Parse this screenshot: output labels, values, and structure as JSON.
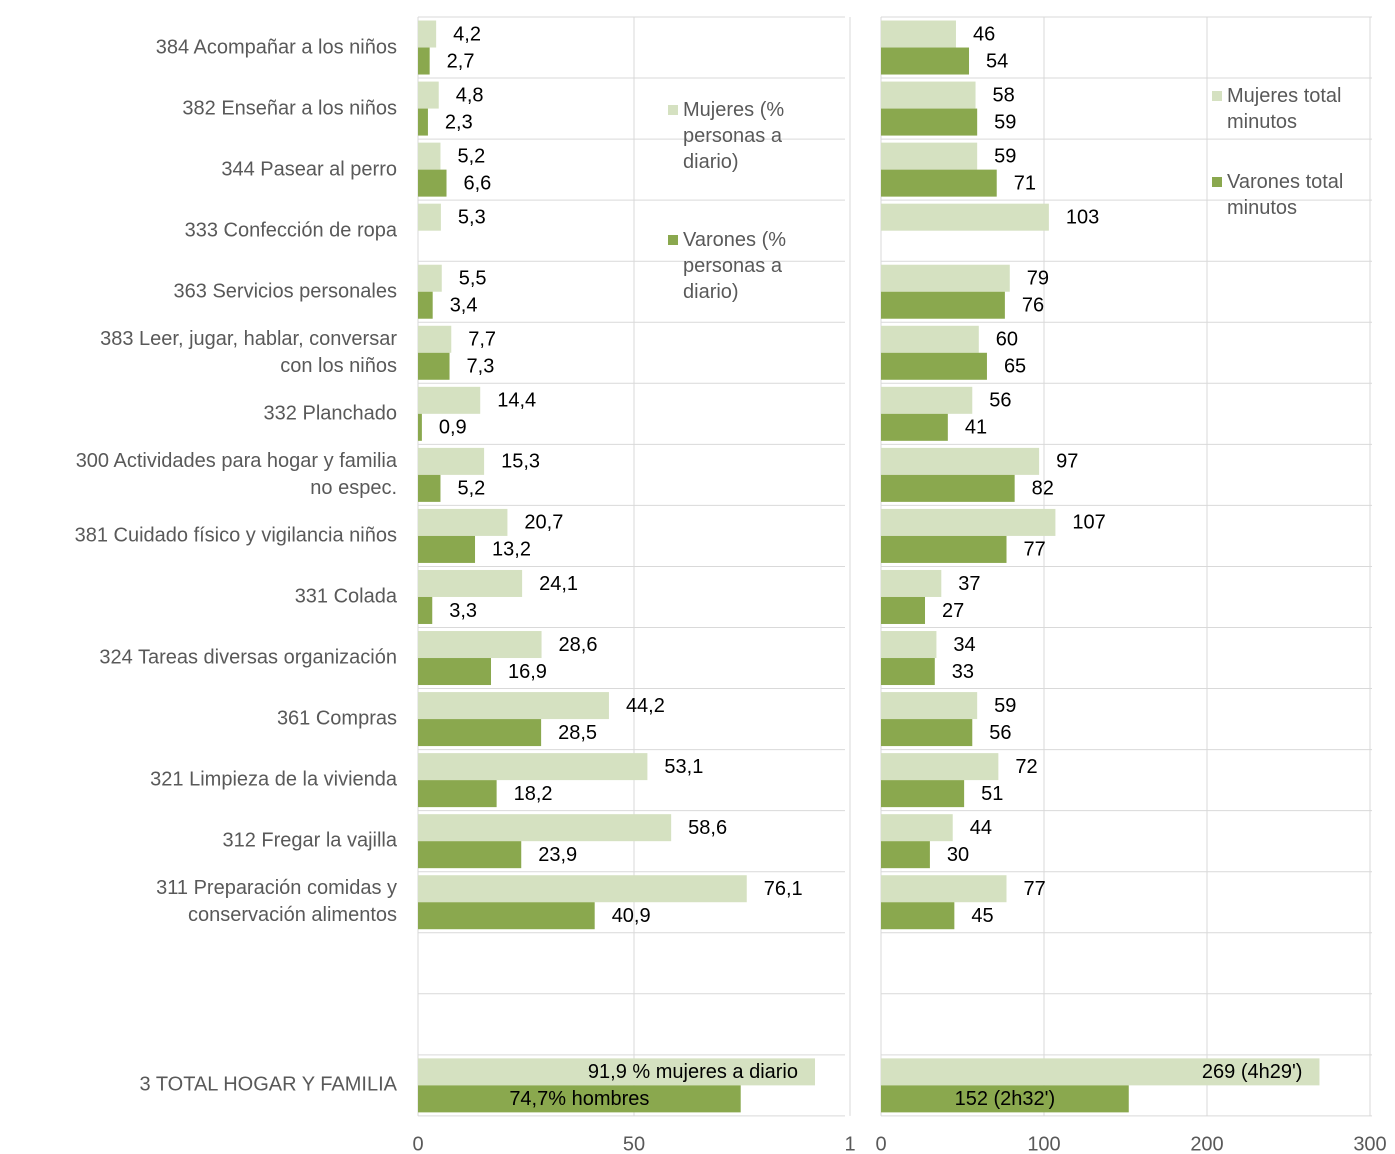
{
  "chart_data": [
    {
      "type": "bar",
      "categories": [
        "384 Acompañar a los niños",
        "382 Enseñar a los niños",
        "344 Pasear al perro",
        "333 Confección de ropa",
        "363 Servicios personales",
        "383 Leer, jugar, hablar, conversar\ncon los niños",
        "332 Planchado",
        "300 Actividades para hogar y familia\nno espec.",
        "381 Cuidado físico y vigilancia niños",
        "331 Colada",
        "324 Tareas diversas organización",
        "361 Compras",
        "321 Limpieza de la vivienda",
        "312 Fregar la vajilla",
        "311 Preparación comidas y\nconservación alimentos",
        null,
        null,
        "3 TOTAL HOGAR Y FAMILIA"
      ],
      "series": [
        {
          "name": "Mujeres (%\npersonas a\ndiario)",
          "color": "#d5e1c1",
          "values": [
            4.2,
            4.8,
            5.2,
            5.3,
            5.5,
            7.7,
            14.4,
            15.3,
            20.7,
            24.1,
            28.6,
            44.2,
            53.1,
            58.6,
            76.1,
            null,
            null,
            91.9
          ],
          "value_labels": [
            "4,2",
            "4,8",
            "5,2",
            "5,3",
            "5,5",
            "7,7",
            "14,4",
            "15,3",
            "20,7",
            "24,1",
            "28,6",
            "44,2",
            "53,1",
            "58,6",
            "76,1",
            null,
            null,
            "91,9 % mujeres a diario"
          ]
        },
        {
          "name": "Varones (%\npersonas a\ndiario)",
          "color": "#8aa84e",
          "values": [
            2.7,
            2.3,
            6.6,
            null,
            3.4,
            7.3,
            0.9,
            5.2,
            13.2,
            3.3,
            16.9,
            28.5,
            18.2,
            23.9,
            40.9,
            null,
            null,
            74.7
          ],
          "value_labels": [
            "2,7",
            "2,3",
            "6,6",
            null,
            "3,4",
            "7,3",
            "0,9",
            "5,2",
            "13,2",
            "3,3",
            "16,9",
            "28,5",
            "18,2",
            "23,9",
            "40,9",
            null,
            null,
            "74,7% hombres"
          ]
        }
      ],
      "xlim": [
        0,
        100
      ],
      "xticks": [
        0,
        50,
        {
          "value": 100,
          "label": "1"
        }
      ],
      "grid": true
    },
    {
      "type": "bar",
      "series": [
        {
          "name": "Mujeres total\nminutos",
          "color": "#d5e1c1",
          "values": [
            46,
            58,
            59,
            103,
            79,
            60,
            56,
            97,
            107,
            37,
            34,
            59,
            72,
            44,
            77,
            null,
            null,
            269
          ],
          "value_labels": [
            null,
            null,
            null,
            null,
            null,
            null,
            null,
            null,
            null,
            null,
            null,
            null,
            null,
            null,
            null,
            null,
            null,
            "269 (4h29')"
          ]
        },
        {
          "name": "Varones total\nminutos",
          "color": "#8aa84e",
          "values": [
            54,
            59,
            71,
            null,
            76,
            65,
            41,
            82,
            77,
            27,
            33,
            56,
            51,
            30,
            45,
            null,
            null,
            152
          ],
          "value_labels": [
            null,
            null,
            null,
            null,
            null,
            null,
            null,
            null,
            null,
            null,
            null,
            null,
            null,
            null,
            null,
            null,
            null,
            "152 (2h32')"
          ]
        }
      ],
      "xlim": [
        0,
        300
      ],
      "xticks": [
        0,
        100,
        200,
        300
      ],
      "grid": true
    }
  ]
}
